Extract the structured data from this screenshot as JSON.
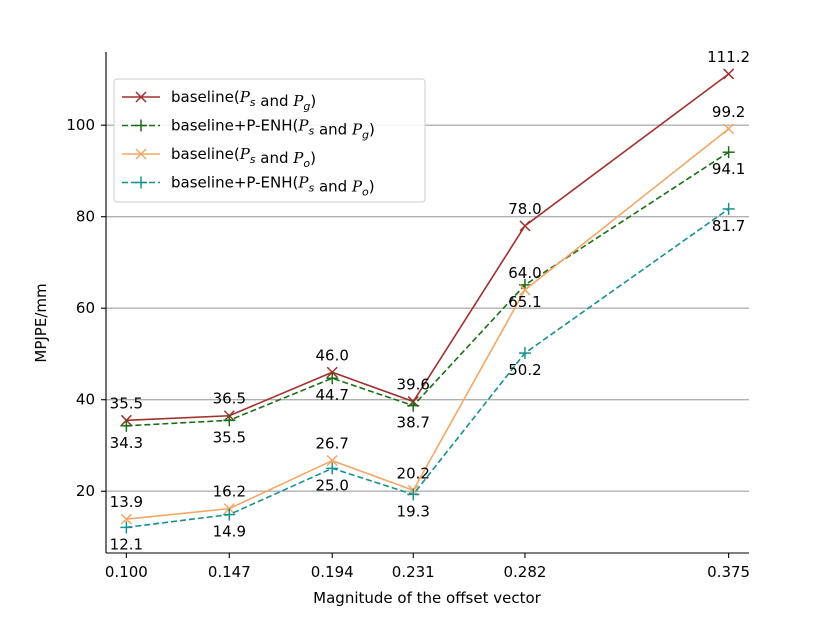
{
  "chart_data": {
    "type": "line",
    "title": "",
    "xlabel": "Magnitude of the offset vector",
    "ylabel": "MPJPE/mm",
    "x": [
      0.1,
      0.147,
      0.194,
      0.231,
      0.282,
      0.375
    ],
    "x_tick_labels": [
      "0.100",
      "0.147",
      "0.194",
      "0.231",
      "0.282",
      "0.375"
    ],
    "yticks": [
      20,
      40,
      60,
      80,
      100
    ],
    "ylim": [
      6.5,
      116
    ],
    "xlim": [
      0.0907,
      0.3843
    ],
    "grid": "horizontal",
    "legend_position": "upper-left",
    "series": [
      {
        "name": "baseline(Ps and Pg)",
        "legend_main": "baseline(",
        "legend_p1": "P",
        "legend_s1": "s",
        "legend_mid": " and ",
        "legend_p2": "P",
        "legend_s2": "g",
        "legend_close": ")",
        "color": "#a0302f",
        "dash": "solid",
        "marker": "x",
        "values": [
          35.5,
          36.5,
          46.0,
          39.6,
          78.0,
          111.2
        ],
        "labels": [
          "35.5",
          "36.5",
          "46.0",
          "39.6",
          "78.0",
          "111.2"
        ],
        "label_side": "above"
      },
      {
        "name": "baseline+P-ENH(Ps and Pg)",
        "legend_main": "baseline+P-ENH(",
        "legend_p1": "P",
        "legend_s1": "s",
        "legend_mid": " and ",
        "legend_p2": "P",
        "legend_s2": "g",
        "legend_close": ")",
        "color": "#1b6e16",
        "dash": "dashed",
        "marker": "+",
        "values": [
          34.3,
          35.5,
          44.7,
          38.7,
          65.1,
          94.1
        ],
        "labels": [
          "34.3",
          "35.5",
          "44.7",
          "38.7",
          "65.1",
          "94.1"
        ],
        "label_side": "below"
      },
      {
        "name": "baseline(Ps and Po)",
        "legend_main": "baseline(",
        "legend_p1": "P",
        "legend_s1": "s",
        "legend_mid": " and ",
        "legend_p2": "P",
        "legend_s2": "o",
        "legend_close": ")",
        "color": "#f3a766",
        "dash": "solid",
        "marker": "x",
        "values": [
          13.9,
          16.2,
          26.7,
          20.2,
          64.0,
          99.2
        ],
        "labels": [
          "13.9",
          "16.2",
          "26.7",
          "20.2",
          "64.0",
          "99.2"
        ],
        "label_side": "above"
      },
      {
        "name": "baseline+P-ENH(Ps and Po)",
        "legend_main": "baseline+P-ENH(",
        "legend_p1": "P",
        "legend_s1": "s",
        "legend_mid": " and ",
        "legend_p2": "P",
        "legend_s2": "o",
        "legend_close": ")",
        "color": "#17918f",
        "dash": "dashed",
        "marker": "+",
        "values": [
          12.1,
          14.9,
          25.0,
          19.3,
          50.2,
          81.7
        ],
        "labels": [
          "12.1",
          "14.9",
          "25.0",
          "19.3",
          "50.2",
          "81.7"
        ],
        "label_side": "below"
      }
    ]
  }
}
